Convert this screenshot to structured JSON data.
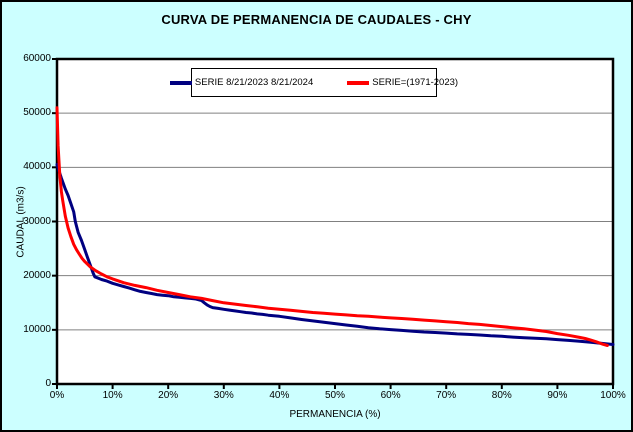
{
  "title": "CURVA DE PERMANENCIA DE CAUDALES - CHY",
  "colors": {
    "background": "#CCFFFF",
    "plot_background": "#FFFFFF",
    "border": "#000000",
    "gridline": "#808080",
    "series1": "#000080",
    "series2": "#FF0000"
  },
  "chart_data": {
    "type": "line",
    "title": "CURVA DE PERMANENCIA DE CAUDALES - CHY",
    "xlabel": "PERMANENCIA (%)",
    "ylabel": "CAUDAL (m3/s)",
    "xlim": [
      0,
      100
    ],
    "ylim": [
      0,
      60000
    ],
    "x_ticks": [
      0,
      10,
      20,
      30,
      40,
      50,
      60,
      70,
      80,
      90,
      100
    ],
    "x_tick_labels": [
      "0%",
      "10%",
      "20%",
      "30%",
      "40%",
      "50%",
      "60%",
      "70%",
      "80%",
      "90%",
      "100%"
    ],
    "y_ticks": [
      0,
      10000,
      20000,
      30000,
      40000,
      50000,
      60000
    ],
    "y_tick_labels": [
      "0",
      "10000",
      "20000",
      "30000",
      "40000",
      "50000",
      "60000"
    ],
    "grid": "horizontal-gridlines-on",
    "legend_position": "top-center",
    "series": [
      {
        "name": "SERIE 8/21/2023 8/21/2024",
        "color": "#000080",
        "width": 3,
        "points": [
          [
            0,
            40500
          ],
          [
            0.3,
            39500
          ],
          [
            0.8,
            38000
          ],
          [
            1.5,
            36000
          ],
          [
            2,
            34800
          ],
          [
            2.5,
            33300
          ],
          [
            3,
            31800
          ],
          [
            3.3,
            30000
          ],
          [
            3.8,
            28000
          ],
          [
            4.4,
            26500
          ],
          [
            5,
            24800
          ],
          [
            5.5,
            23300
          ],
          [
            6,
            21900
          ],
          [
            6.5,
            20500
          ],
          [
            6.8,
            19800
          ],
          [
            7.5,
            19500
          ],
          [
            8,
            19300
          ],
          [
            9,
            19000
          ],
          [
            10,
            18600
          ],
          [
            11,
            18300
          ],
          [
            12,
            18000
          ],
          [
            13,
            17700
          ],
          [
            14,
            17400
          ],
          [
            15,
            17100
          ],
          [
            16,
            16900
          ],
          [
            17,
            16700
          ],
          [
            18,
            16500
          ],
          [
            19,
            16400
          ],
          [
            20,
            16300
          ],
          [
            21,
            16100
          ],
          [
            22,
            16000
          ],
          [
            23,
            15900
          ],
          [
            24,
            15800
          ],
          [
            25,
            15700
          ],
          [
            26,
            15400
          ],
          [
            26.5,
            15000
          ],
          [
            27,
            14600
          ],
          [
            27.5,
            14300
          ],
          [
            28,
            14100
          ],
          [
            29,
            13950
          ],
          [
            30,
            13800
          ],
          [
            31,
            13650
          ],
          [
            32,
            13500
          ],
          [
            33,
            13350
          ],
          [
            34,
            13200
          ],
          [
            35,
            13100
          ],
          [
            36,
            12950
          ],
          [
            37,
            12850
          ],
          [
            38,
            12700
          ],
          [
            39,
            12600
          ],
          [
            40,
            12500
          ],
          [
            42,
            12200
          ],
          [
            44,
            11900
          ],
          [
            46,
            11650
          ],
          [
            48,
            11400
          ],
          [
            50,
            11150
          ],
          [
            52,
            10900
          ],
          [
            54,
            10650
          ],
          [
            56,
            10400
          ],
          [
            58,
            10200
          ],
          [
            60,
            10050
          ],
          [
            62,
            9900
          ],
          [
            64,
            9750
          ],
          [
            66,
            9600
          ],
          [
            68,
            9500
          ],
          [
            70,
            9400
          ],
          [
            72,
            9250
          ],
          [
            74,
            9150
          ],
          [
            76,
            9050
          ],
          [
            78,
            8900
          ],
          [
            80,
            8800
          ],
          [
            82,
            8650
          ],
          [
            84,
            8550
          ],
          [
            86,
            8450
          ],
          [
            88,
            8350
          ],
          [
            90,
            8200
          ],
          [
            92,
            8050
          ],
          [
            94,
            7900
          ],
          [
            96,
            7700
          ],
          [
            98,
            7500
          ],
          [
            100,
            7300
          ]
        ]
      },
      {
        "name": "SERIE=(1971-2023)",
        "color": "#FF0000",
        "width": 3,
        "points": [
          [
            0,
            51000
          ],
          [
            0.2,
            44000
          ],
          [
            0.5,
            38500
          ],
          [
            0.8,
            35500
          ],
          [
            1,
            34000
          ],
          [
            1.5,
            31000
          ],
          [
            2,
            28800
          ],
          [
            2.5,
            27200
          ],
          [
            3,
            25800
          ],
          [
            3.5,
            24800
          ],
          [
            4,
            24000
          ],
          [
            4.5,
            23200
          ],
          [
            5,
            22600
          ],
          [
            6,
            21600
          ],
          [
            7,
            20900
          ],
          [
            8,
            20300
          ],
          [
            9,
            19800
          ],
          [
            10,
            19400
          ],
          [
            12,
            18700
          ],
          [
            14,
            18200
          ],
          [
            16,
            17800
          ],
          [
            18,
            17300
          ],
          [
            20,
            16900
          ],
          [
            22,
            16500
          ],
          [
            24,
            16100
          ],
          [
            26,
            15800
          ],
          [
            28,
            15400
          ],
          [
            30,
            15000
          ],
          [
            32,
            14750
          ],
          [
            34,
            14500
          ],
          [
            36,
            14250
          ],
          [
            38,
            14000
          ],
          [
            40,
            13800
          ],
          [
            42,
            13600
          ],
          [
            44,
            13400
          ],
          [
            46,
            13200
          ],
          [
            48,
            13050
          ],
          [
            50,
            12900
          ],
          [
            52,
            12750
          ],
          [
            54,
            12600
          ],
          [
            56,
            12500
          ],
          [
            58,
            12350
          ],
          [
            60,
            12200
          ],
          [
            62,
            12100
          ],
          [
            64,
            11950
          ],
          [
            66,
            11800
          ],
          [
            68,
            11650
          ],
          [
            70,
            11500
          ],
          [
            72,
            11350
          ],
          [
            74,
            11150
          ],
          [
            76,
            11000
          ],
          [
            78,
            10800
          ],
          [
            80,
            10600
          ],
          [
            82,
            10400
          ],
          [
            84,
            10200
          ],
          [
            86,
            9950
          ],
          [
            88,
            9700
          ],
          [
            90,
            9300
          ],
          [
            92,
            9000
          ],
          [
            94,
            8600
          ],
          [
            95,
            8400
          ],
          [
            96,
            8100
          ],
          [
            97,
            7800
          ],
          [
            98,
            7400
          ],
          [
            99,
            7100
          ]
        ]
      }
    ]
  }
}
